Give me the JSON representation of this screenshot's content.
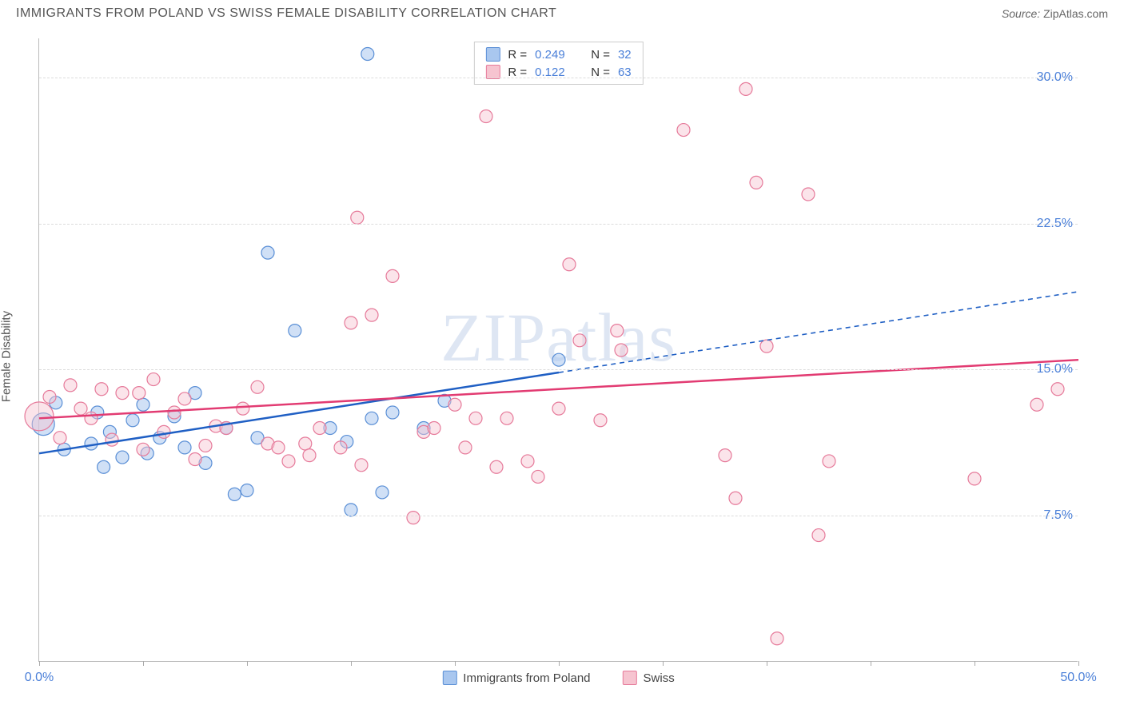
{
  "header": {
    "title": "IMMIGRANTS FROM POLAND VS SWISS FEMALE DISABILITY CORRELATION CHART",
    "source_label": "Source:",
    "source_value": "ZipAtlas.com"
  },
  "watermark": "ZIPatlas",
  "chart": {
    "type": "scatter",
    "xlim": [
      0,
      50
    ],
    "ylim": [
      0,
      32
    ],
    "xtick_positions": [
      0,
      5,
      10,
      15,
      20,
      25,
      30,
      35,
      40,
      45,
      50
    ],
    "xtick_labels": {
      "0": "0.0%",
      "50": "50.0%"
    },
    "ygrid_positions": [
      7.5,
      15.0,
      22.5,
      30.0
    ],
    "ytick_labels": [
      "7.5%",
      "15.0%",
      "22.5%",
      "30.0%"
    ],
    "ylabel": "Female Disability",
    "background_color": "#ffffff",
    "grid_color": "#dcdcdc",
    "axis_color": "#bbbbbb",
    "tick_label_color": "#4a7fd8",
    "series": [
      {
        "name": "Immigrants from Poland",
        "key": "poland",
        "fill": "#a9c7ef",
        "stroke": "#5a8fd6",
        "line_color": "#1f5fc4",
        "line_dash_after_x": 25,
        "r": 0.249,
        "n": 32,
        "regression": {
          "x1": 0,
          "y1": 10.7,
          "x2": 50,
          "y2": 19.0
        },
        "marker_radius": 8,
        "marker_opacity": 0.55,
        "points": [
          [
            0.2,
            12.2,
            14
          ],
          [
            0.8,
            13.3
          ],
          [
            1.2,
            10.9
          ],
          [
            2.5,
            11.2
          ],
          [
            2.8,
            12.8
          ],
          [
            3.1,
            10.0
          ],
          [
            3.4,
            11.8
          ],
          [
            4.0,
            10.5
          ],
          [
            4.5,
            12.4
          ],
          [
            5.0,
            13.2
          ],
          [
            5.2,
            10.7
          ],
          [
            5.8,
            11.5
          ],
          [
            6.5,
            12.6
          ],
          [
            7.0,
            11.0
          ],
          [
            7.5,
            13.8
          ],
          [
            8.0,
            10.2
          ],
          [
            9.0,
            12.0
          ],
          [
            9.4,
            8.6
          ],
          [
            10.0,
            8.8
          ],
          [
            10.5,
            11.5
          ],
          [
            11.0,
            21.0
          ],
          [
            12.3,
            17.0
          ],
          [
            14.0,
            12.0
          ],
          [
            14.8,
            11.3
          ],
          [
            15.0,
            7.8
          ],
          [
            15.8,
            31.2
          ],
          [
            16.0,
            12.5
          ],
          [
            16.5,
            8.7
          ],
          [
            17.0,
            12.8
          ],
          [
            18.5,
            12.0
          ],
          [
            19.5,
            13.4
          ],
          [
            25.0,
            15.5
          ]
        ]
      },
      {
        "name": "Swiss",
        "key": "swiss",
        "fill": "#f6c4d0",
        "stroke": "#e67a9a",
        "line_color": "#e23b72",
        "line_dash_after_x": 50,
        "r": 0.122,
        "n": 63,
        "regression": {
          "x1": 0,
          "y1": 12.5,
          "x2": 50,
          "y2": 15.5
        },
        "marker_radius": 8,
        "marker_opacity": 0.45,
        "points": [
          [
            0.0,
            12.6,
            18
          ],
          [
            0.5,
            13.6
          ],
          [
            1.0,
            11.5
          ],
          [
            1.5,
            14.2
          ],
          [
            2.0,
            13.0
          ],
          [
            2.5,
            12.5
          ],
          [
            3.0,
            14.0
          ],
          [
            3.5,
            11.4
          ],
          [
            4.0,
            13.8
          ],
          [
            4.8,
            13.8
          ],
          [
            5.0,
            10.9
          ],
          [
            5.5,
            14.5
          ],
          [
            6.0,
            11.8
          ],
          [
            6.5,
            12.8
          ],
          [
            7.0,
            13.5
          ],
          [
            7.5,
            10.4
          ],
          [
            8.0,
            11.1
          ],
          [
            8.5,
            12.1
          ],
          [
            9.0,
            12.0
          ],
          [
            9.8,
            13.0
          ],
          [
            10.5,
            14.1
          ],
          [
            11.0,
            11.2
          ],
          [
            11.5,
            11.0
          ],
          [
            12.0,
            10.3
          ],
          [
            12.8,
            11.2
          ],
          [
            13.0,
            10.6
          ],
          [
            13.5,
            12.0
          ],
          [
            14.5,
            11.0
          ],
          [
            15.0,
            17.4
          ],
          [
            15.3,
            22.8
          ],
          [
            15.5,
            10.1
          ],
          [
            16.0,
            17.8
          ],
          [
            17.0,
            19.8
          ],
          [
            18.0,
            7.4
          ],
          [
            18.5,
            11.8
          ],
          [
            19.0,
            12.0
          ],
          [
            20.0,
            13.2
          ],
          [
            20.5,
            11.0
          ],
          [
            21.0,
            12.5
          ],
          [
            21.5,
            28.0
          ],
          [
            22.0,
            10.0
          ],
          [
            22.5,
            12.5
          ],
          [
            23.5,
            10.3
          ],
          [
            24.0,
            9.5
          ],
          [
            25.0,
            13.0
          ],
          [
            25.5,
            20.4
          ],
          [
            26.0,
            16.5
          ],
          [
            27.0,
            12.4
          ],
          [
            27.8,
            17.0
          ],
          [
            28.0,
            16.0
          ],
          [
            31.0,
            27.3
          ],
          [
            33.0,
            10.6
          ],
          [
            33.5,
            8.4
          ],
          [
            34.0,
            29.4
          ],
          [
            34.5,
            24.6
          ],
          [
            35.0,
            16.2
          ],
          [
            35.5,
            1.2
          ],
          [
            37.0,
            24.0
          ],
          [
            37.5,
            6.5
          ],
          [
            38.0,
            10.3
          ],
          [
            45.0,
            9.4
          ],
          [
            48.0,
            13.2
          ],
          [
            49.0,
            14.0
          ]
        ]
      }
    ],
    "legend_bottom": [
      {
        "key": "poland",
        "label": "Immigrants from Poland"
      },
      {
        "key": "swiss",
        "label": "Swiss"
      }
    ]
  }
}
